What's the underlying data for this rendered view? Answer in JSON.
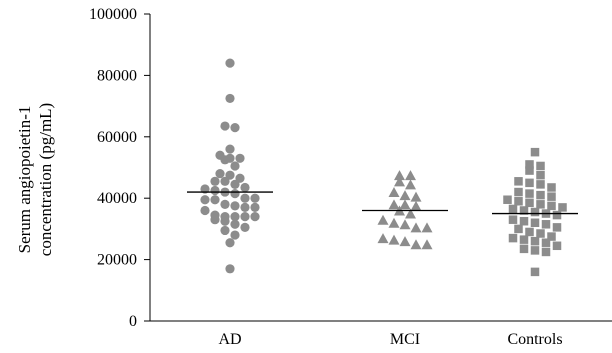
{
  "chart_data": {
    "type": "scatter",
    "categories": [
      "AD",
      "MCI",
      "Controls"
    ],
    "ylabel": [
      "Serum angiopoietin-1",
      "concentration (pg/mL)"
    ],
    "xlabel": "",
    "ylim": [
      0,
      100000
    ],
    "yticks": [
      0,
      20000,
      40000,
      60000,
      80000,
      100000
    ],
    "ytick_labels": [
      "0",
      "20000",
      "40000",
      "60000",
      "80000",
      "100000"
    ],
    "grid": false,
    "legend": "none",
    "series": [
      {
        "category": "AD",
        "marker": "circle",
        "color": "#8c8c8c",
        "mean": 42000,
        "values": [
          84000,
          72500,
          63500,
          63000,
          56000,
          54000,
          53000,
          53000,
          52500,
          50500,
          48000,
          47500,
          46500,
          45500,
          45500,
          44500,
          43500,
          43000,
          42500,
          42000,
          41500,
          40000,
          40000,
          39500,
          39500,
          38000,
          37500,
          37000,
          37000,
          36000,
          34500,
          34000,
          34000,
          34000,
          34000,
          33000,
          32500,
          31500,
          30500,
          29500,
          28000,
          25500,
          17000
        ]
      },
      {
        "category": "MCI",
        "marker": "triangle",
        "color": "#8c8c8c",
        "mean": 36000,
        "values": [
          47500,
          47500,
          45500,
          44500,
          42000,
          41000,
          40500,
          38000,
          38000,
          37500,
          36000,
          35000,
          33000,
          32000,
          31500,
          30500,
          30500,
          27000,
          26500,
          26000,
          25000,
          25000
        ]
      },
      {
        "category": "Controls",
        "marker": "square",
        "color": "#8c8c8c",
        "mean": 35000,
        "values": [
          55000,
          51000,
          50500,
          49000,
          47500,
          45500,
          45000,
          44500,
          43500,
          42000,
          41500,
          41000,
          40500,
          39500,
          39000,
          38500,
          38000,
          37500,
          37000,
          36500,
          36000,
          35500,
          35000,
          34500,
          33000,
          32500,
          32000,
          31500,
          30500,
          30000,
          29000,
          28500,
          27500,
          27000,
          26500,
          26000,
          25500,
          24500,
          23500,
          23000,
          22500,
          16000
        ]
      }
    ]
  }
}
